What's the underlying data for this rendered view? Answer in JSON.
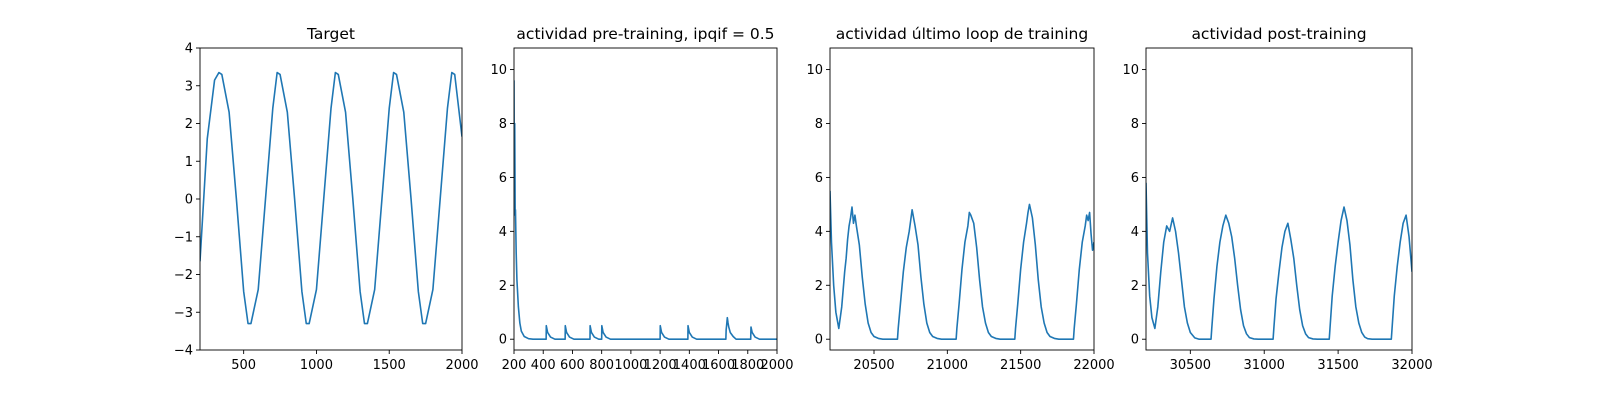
{
  "chart_data": [
    {
      "type": "line",
      "title": "Target",
      "xlim": [
        200,
        2000
      ],
      "ylim": [
        -4,
        4
      ],
      "xticks": [
        500,
        1000,
        1500,
        2000
      ],
      "yticks": [
        -4,
        -3,
        -2,
        -1,
        0,
        1,
        2,
        3,
        4
      ],
      "color": "#1f77b4",
      "series": [
        {
          "x": [
            200,
            250,
            300,
            330,
            350,
            400,
            450,
            500,
            530,
            550,
            600,
            650,
            700,
            730,
            750,
            800,
            850,
            900,
            930,
            950,
            1000,
            1050,
            1100,
            1130,
            1150,
            1200,
            1250,
            1300,
            1330,
            1350,
            1400,
            1450,
            1500,
            1530,
            1550,
            1600,
            1650,
            1700,
            1730,
            1750,
            1800,
            1850,
            1900,
            1930,
            1950,
            2000
          ],
          "y": [
            -1.65,
            1.6,
            3.15,
            3.35,
            3.3,
            2.3,
            0.0,
            -2.45,
            -3.3,
            -3.3,
            -2.4,
            0.0,
            2.4,
            3.35,
            3.3,
            2.3,
            0.0,
            -2.45,
            -3.3,
            -3.3,
            -2.4,
            0.0,
            2.4,
            3.35,
            3.3,
            2.3,
            0.0,
            -2.45,
            -3.3,
            -3.3,
            -2.4,
            0.0,
            2.4,
            3.35,
            3.3,
            2.3,
            0.0,
            -2.45,
            -3.3,
            -3.3,
            -2.4,
            0.0,
            2.4,
            3.35,
            3.3,
            1.65
          ]
        }
      ]
    },
    {
      "type": "line",
      "title": "actividad pre-training, ipqif = 0.5",
      "xlim": [
        200,
        2000
      ],
      "ylim": [
        -0.4,
        10.8
      ],
      "xticks": [
        200,
        400,
        600,
        800,
        1000,
        1200,
        1400,
        1600,
        1800,
        2000
      ],
      "yticks": [
        0,
        2,
        4,
        6,
        8,
        10
      ],
      "color": "#1f77b4",
      "series": [
        {
          "x": [
            200,
            202,
            205,
            208,
            210,
            215,
            220,
            230,
            240,
            250,
            270,
            300,
            330,
            400,
            420,
            421,
            430,
            450,
            480,
            550,
            551,
            560,
            580,
            610,
            720,
            721,
            730,
            750,
            780,
            800,
            801,
            810,
            830,
            860,
            1200,
            1201,
            1210,
            1230,
            1260,
            1390,
            1391,
            1400,
            1420,
            1450,
            1650,
            1652,
            1655,
            1660,
            1665,
            1670,
            1680,
            1700,
            1720,
            1820,
            1822,
            1830,
            1850,
            1880,
            2000
          ],
          "y": [
            9.6,
            5.5,
            8.0,
            4.6,
            4.8,
            3.2,
            2.2,
            1.2,
            0.6,
            0.3,
            0.1,
            0.02,
            0.0,
            0.0,
            0.0,
            0.5,
            0.25,
            0.08,
            0.0,
            0.0,
            0.5,
            0.25,
            0.08,
            0.0,
            0.0,
            0.5,
            0.25,
            0.08,
            0.0,
            0.0,
            0.5,
            0.25,
            0.08,
            0.0,
            0.0,
            0.5,
            0.25,
            0.08,
            0.0,
            0.0,
            0.5,
            0.25,
            0.08,
            0.0,
            0.0,
            0.35,
            0.5,
            0.8,
            0.6,
            0.45,
            0.25,
            0.1,
            0.0,
            0.0,
            0.45,
            0.25,
            0.08,
            0.0,
            0.0
          ]
        }
      ]
    },
    {
      "type": "line",
      "title": "actividad último loop de training",
      "xlim": [
        20200,
        22000
      ],
      "ylim": [
        -0.4,
        10.8
      ],
      "xticks": [
        20500,
        21000,
        21500,
        22000
      ],
      "yticks": [
        0,
        2,
        4,
        6,
        8,
        10
      ],
      "color": "#1f77b4",
      "series": [
        {
          "x": [
            20200,
            20210,
            20225,
            20240,
            20260,
            20280,
            20300,
            20310,
            20320,
            20330,
            20340,
            20350,
            20360,
            20370,
            20380,
            20400,
            20420,
            20440,
            20460,
            20480,
            20500,
            20530,
            20560,
            20600,
            20660,
            20665,
            20680,
            20700,
            20720,
            20740,
            20750,
            20760,
            20780,
            20800,
            20820,
            20840,
            20860,
            20880,
            20900,
            20930,
            20960,
            21000,
            21060,
            21065,
            21080,
            21100,
            21120,
            21140,
            21150,
            21160,
            21180,
            21200,
            21220,
            21240,
            21260,
            21280,
            21300,
            21330,
            21360,
            21400,
            21460,
            21465,
            21480,
            21500,
            21520,
            21540,
            21550,
            21560,
            21580,
            21600,
            21620,
            21640,
            21660,
            21680,
            21700,
            21730,
            21760,
            21800,
            21860,
            21865,
            21880,
            21900,
            21920,
            21940,
            21950,
            21960,
            21970,
            21980,
            21990,
            22000
          ],
          "y": [
            5.5,
            3.6,
            2.0,
            1.0,
            0.4,
            1.2,
            2.5,
            3.0,
            3.7,
            4.2,
            4.5,
            4.9,
            4.3,
            4.6,
            4.2,
            3.5,
            2.3,
            1.3,
            0.6,
            0.25,
            0.1,
            0.03,
            0.0,
            0.0,
            0.0,
            0.4,
            1.3,
            2.5,
            3.4,
            4.0,
            4.4,
            4.8,
            4.2,
            3.5,
            2.3,
            1.3,
            0.6,
            0.25,
            0.1,
            0.03,
            0.0,
            0.0,
            0.0,
            0.4,
            1.3,
            2.6,
            3.6,
            4.2,
            4.7,
            4.6,
            4.3,
            3.4,
            2.2,
            1.2,
            0.6,
            0.25,
            0.1,
            0.03,
            0.0,
            0.0,
            0.0,
            0.4,
            1.3,
            2.6,
            3.6,
            4.3,
            4.7,
            5.0,
            4.5,
            3.5,
            2.2,
            1.2,
            0.6,
            0.25,
            0.1,
            0.03,
            0.0,
            0.0,
            0.0,
            0.4,
            1.3,
            2.6,
            3.6,
            4.2,
            4.6,
            4.4,
            4.7,
            3.9,
            3.3,
            3.6
          ]
        }
      ]
    },
    {
      "type": "line",
      "title": "actividad post-training",
      "xlim": [
        30200,
        32000
      ],
      "ylim": [
        -0.4,
        10.8
      ],
      "xticks": [
        30500,
        31000,
        31500,
        32000
      ],
      "yticks": [
        0,
        2,
        4,
        6,
        8,
        10
      ],
      "color": "#1f77b4",
      "series": [
        {
          "x": [
            30200,
            30210,
            30225,
            30240,
            30260,
            30280,
            30300,
            30320,
            30340,
            30360,
            30380,
            30400,
            30420,
            30440,
            30460,
            30480,
            30500,
            30530,
            30560,
            30640,
            30645,
            30660,
            30680,
            30700,
            30720,
            30740,
            30760,
            30780,
            30800,
            30820,
            30840,
            30860,
            30880,
            30900,
            30930,
            30960,
            31060,
            31065,
            31080,
            31100,
            31120,
            31140,
            31160,
            31180,
            31200,
            31220,
            31240,
            31260,
            31280,
            31300,
            31330,
            31360,
            31440,
            31445,
            31460,
            31480,
            31500,
            31520,
            31540,
            31560,
            31580,
            31600,
            31620,
            31640,
            31660,
            31680,
            31700,
            31730,
            31760,
            31860,
            31865,
            31880,
            31900,
            31920,
            31940,
            31960,
            31980,
            32000
          ],
          "y": [
            5.8,
            3.2,
            1.6,
            0.8,
            0.4,
            1.2,
            2.5,
            3.6,
            4.2,
            4.0,
            4.5,
            4.0,
            3.2,
            2.2,
            1.2,
            0.6,
            0.25,
            0.05,
            0.0,
            0.0,
            0.4,
            1.5,
            2.7,
            3.6,
            4.2,
            4.6,
            4.3,
            3.8,
            3.0,
            2.0,
            1.1,
            0.5,
            0.2,
            0.06,
            0.01,
            0.0,
            0.0,
            0.4,
            1.5,
            2.5,
            3.4,
            4.0,
            4.3,
            3.7,
            3.0,
            2.0,
            1.1,
            0.5,
            0.2,
            0.06,
            0.01,
            0.0,
            0.0,
            0.4,
            1.6,
            2.7,
            3.6,
            4.4,
            4.9,
            4.4,
            3.5,
            2.2,
            1.2,
            0.6,
            0.25,
            0.08,
            0.02,
            0.0,
            0.0,
            0.0,
            0.4,
            1.6,
            2.7,
            3.6,
            4.3,
            4.6,
            3.8,
            2.5
          ]
        }
      ]
    }
  ]
}
